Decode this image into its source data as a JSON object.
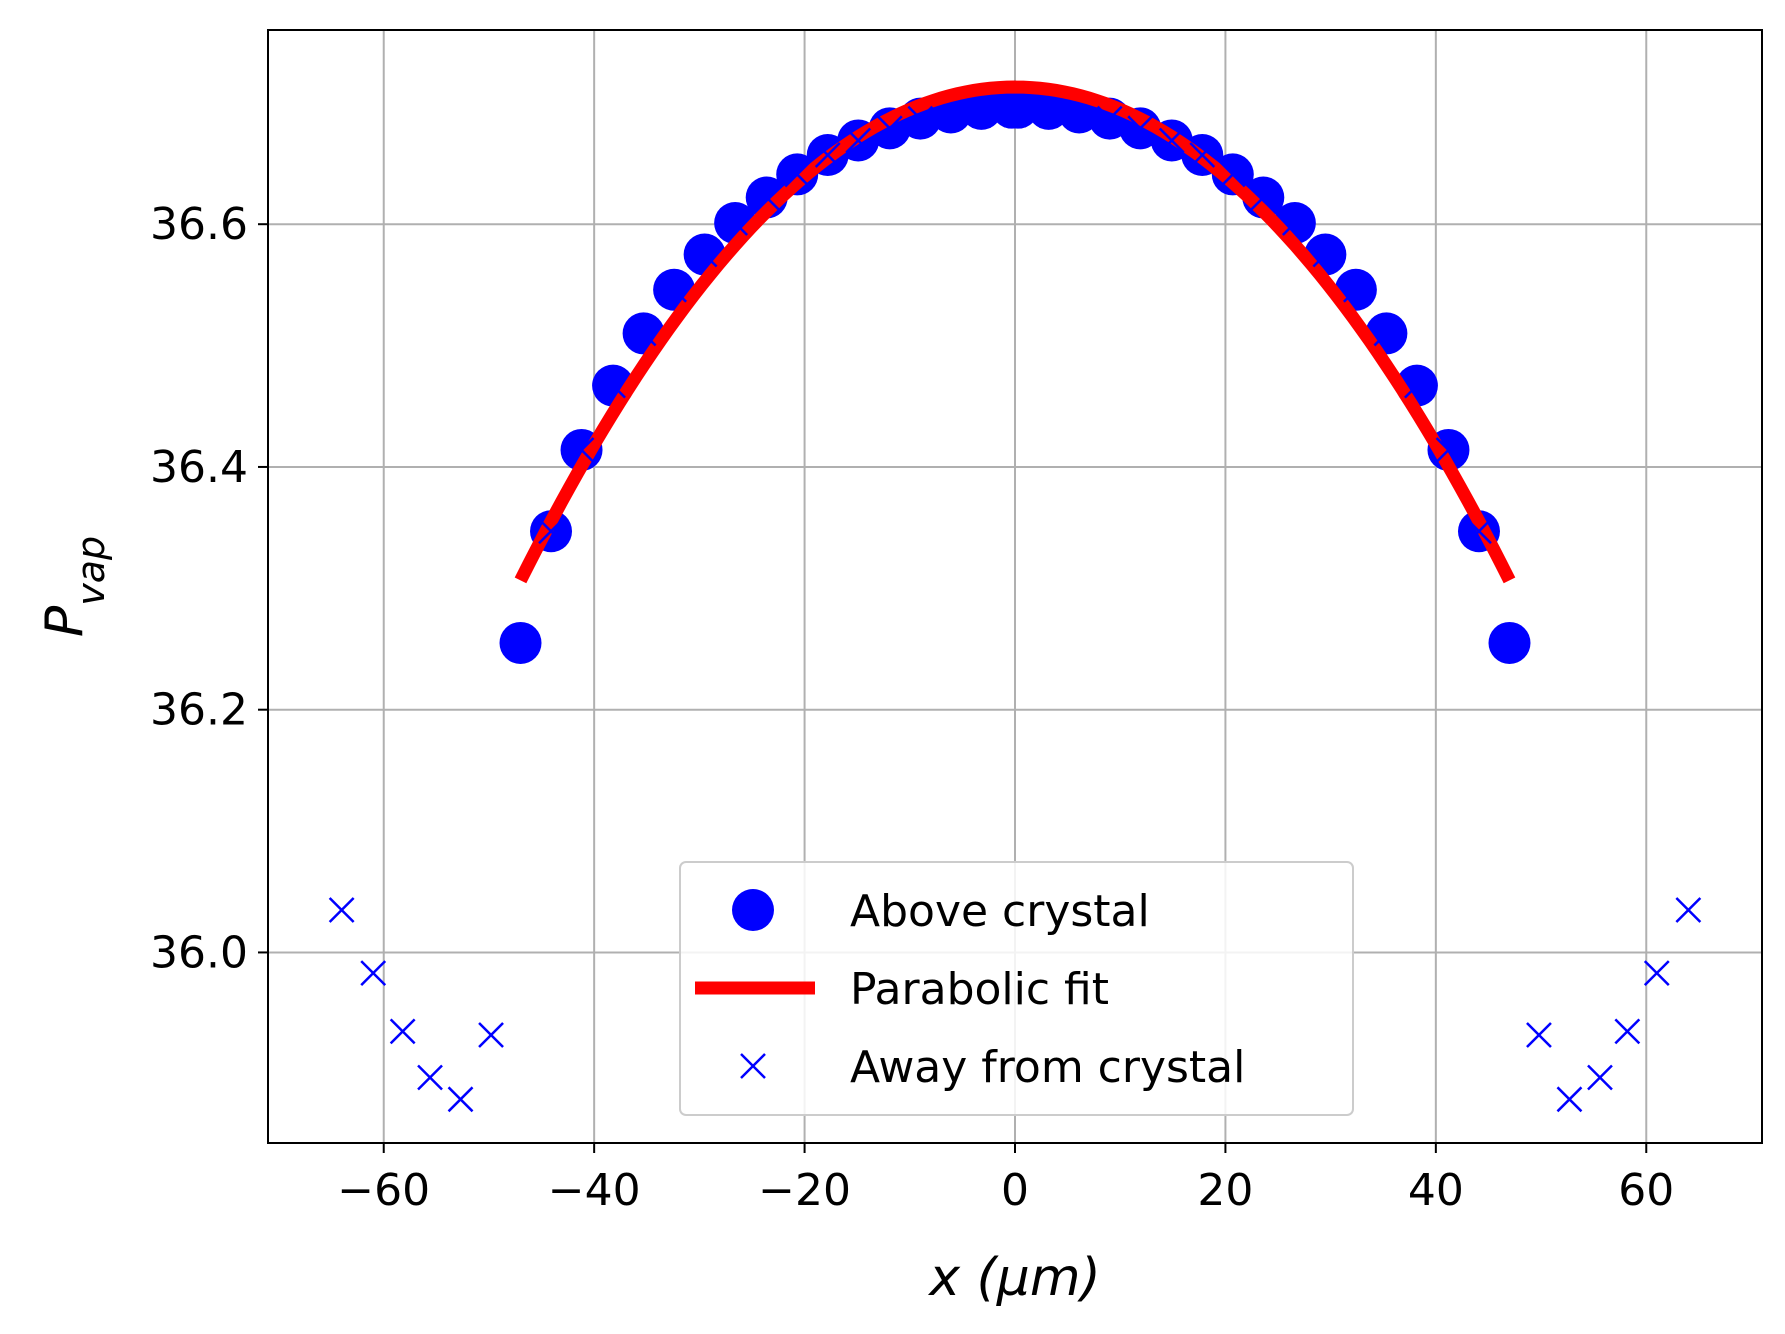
{
  "chart_data": {
    "type": "scatter",
    "xlabel": "x (μm)",
    "ylabel_main": "P",
    "ylabel_sub": "vap",
    "xlim": [
      -71,
      71
    ],
    "ylim": [
      35.843,
      36.76
    ],
    "x_ticks": [
      -60,
      -40,
      -20,
      0,
      20,
      40,
      60
    ],
    "x_tick_labels": [
      "−60",
      "−40",
      "−20",
      "0",
      "20",
      "40",
      "60"
    ],
    "y_ticks": [
      36.0,
      36.2,
      36.4,
      36.6
    ],
    "y_tick_labels": [
      "36.0",
      "36.2",
      "36.4",
      "36.6"
    ],
    "grid": true,
    "legend_position": "lower center",
    "series": [
      {
        "name": "Above crystal",
        "marker": "circle",
        "color": "#0000ff",
        "x": [
          -47.0,
          -44.1,
          -41.2,
          -38.2,
          -35.3,
          -32.4,
          -29.5,
          -26.6,
          -23.6,
          -20.7,
          -17.8,
          -14.9,
          -11.9,
          -9.0,
          -6.1,
          -3.2,
          -0.3,
          0.3,
          3.2,
          6.1,
          9.0,
          11.9,
          14.9,
          17.8,
          20.7,
          23.6,
          26.6,
          29.5,
          32.4,
          35.3,
          38.2,
          41.2,
          44.1,
          47.0
        ],
        "y": [
          36.255,
          36.347,
          36.414,
          36.467,
          36.51,
          36.546,
          36.575,
          36.601,
          36.622,
          36.641,
          36.657,
          36.669,
          36.679,
          36.687,
          36.692,
          36.695,
          36.696,
          36.696,
          36.695,
          36.692,
          36.687,
          36.679,
          36.669,
          36.657,
          36.641,
          36.622,
          36.601,
          36.575,
          36.546,
          36.51,
          36.467,
          36.414,
          36.347,
          36.255
        ]
      },
      {
        "name": "Parabolic fit",
        "line": "solid",
        "color": "#ff0000",
        "a": -0.000184,
        "b": 0,
        "c": 36.713,
        "x_range": [
          -47.0,
          47.0
        ]
      },
      {
        "name": "Away from crystal",
        "marker": "x",
        "color": "#0000ff",
        "x": [
          -64.0,
          -61.0,
          -58.2,
          -55.6,
          -52.7,
          -49.8,
          49.8,
          52.7,
          55.6,
          58.2,
          61.0,
          64.0
        ],
        "y": [
          36.035,
          35.983,
          35.935,
          35.897,
          35.879,
          35.932,
          35.932,
          35.879,
          35.897,
          35.935,
          35.983,
          36.035
        ]
      },
      {
        "name": "",
        "marker": "x",
        "color": "#0000ff",
        "x": [
          -44.1,
          -41.2,
          -38.2,
          -35.3,
          -32.4,
          -29.5,
          -26.6,
          -23.6,
          -20.7,
          -17.8,
          -14.9,
          -11.9,
          -9.0,
          9.0,
          11.9,
          14.9,
          17.8,
          20.7,
          23.6,
          26.6,
          29.5,
          32.4,
          35.3,
          38.2,
          41.2,
          44.1
        ],
        "y": [
          36.347,
          36.414,
          36.467,
          36.51,
          36.546,
          36.575,
          36.601,
          36.622,
          36.641,
          36.657,
          36.669,
          36.679,
          36.687,
          36.687,
          36.679,
          36.669,
          36.657,
          36.641,
          36.622,
          36.601,
          36.575,
          36.546,
          36.51,
          36.467,
          36.414,
          36.347
        ]
      }
    ]
  }
}
